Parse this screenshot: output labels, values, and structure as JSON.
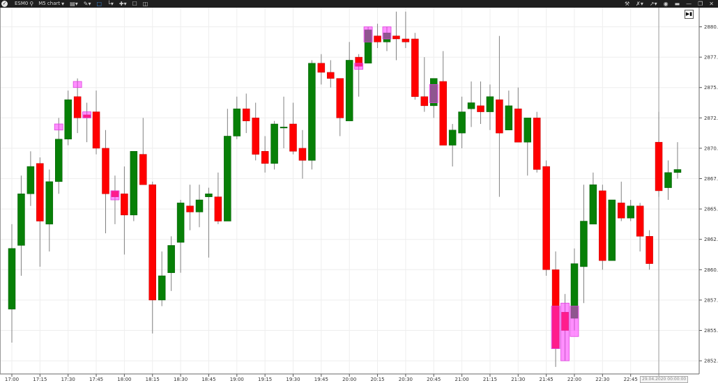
{
  "toolbar": {
    "symbol": "ESM0",
    "timeframe": "M5 chart",
    "left_icons": [
      "logo-icon",
      "search-icon",
      "monitor-icon",
      "pencil-icon",
      "chart-type-icon",
      "indicators-icon",
      "crosshair-icon",
      "square-icon",
      "panels-icon"
    ],
    "right_icons": [
      "tools-icon",
      "magnet-icon",
      "link-icon",
      "camera-icon",
      "pin-icon",
      "minimize-icon",
      "restore-icon",
      "close-icon"
    ]
  },
  "colors": {
    "up": "#078007",
    "down": "#ff0000",
    "marker": "#ff33ff",
    "grid": "#eeeeee",
    "wick": "#808080"
  },
  "date_label": "29.04.2020 00:00:00",
  "chart_data": {
    "type": "candlestick",
    "title": "",
    "ylim": [
      2851.5,
      2881.5
    ],
    "y_ticks": [
      "2852.50",
      "2855.00",
      "2857.50",
      "2860.00",
      "2862.50",
      "2865.00",
      "2867.50",
      "2870.00",
      "2872.50",
      "2875.00",
      "2877.50",
      "2880.00"
    ],
    "x_ticks": [
      "17:00",
      "17:15",
      "17:30",
      "17:45",
      "18:00",
      "18:15",
      "18:30",
      "18:45",
      "19:00",
      "19:15",
      "19:30",
      "19:45",
      "20:00",
      "20:15",
      "20:30",
      "20:45",
      "21:00",
      "21:15",
      "21:30",
      "21:45",
      "22:00",
      "22:30",
      "22:45"
    ],
    "grid": true,
    "candles": [
      [
        "17:00",
        2856.75,
        2863.75,
        2854,
        2861.75
      ],
      [
        "17:05",
        2862,
        2867.75,
        2859.5,
        2866.25
      ],
      [
        "17:10",
        2866.25,
        2869.75,
        2865.25,
        2868.5
      ],
      [
        "17:15",
        2868.75,
        2869.25,
        2860.25,
        2864
      ],
      [
        "17:20",
        2863.75,
        2868.25,
        2861.5,
        2867.25
      ],
      [
        "17:25",
        2867.25,
        2872.5,
        2866.25,
        2870.75
      ],
      [
        "17:30",
        2870.75,
        2874.75,
        2870.25,
        2874
      ],
      [
        "17:35",
        2874.25,
        2875.75,
        2871.25,
        2872.5
      ],
      [
        "17:40",
        2872.75,
        2873.75,
        2870.5,
        2872.5
      ],
      [
        "17:45",
        2873,
        2874.75,
        2869.5,
        2870
      ],
      [
        "17:50",
        2870,
        2871.5,
        2863,
        2866.25
      ],
      [
        "17:55",
        2866.5,
        2867.75,
        2863.75,
        2866
      ],
      [
        "18:00",
        2866.25,
        2868.5,
        2861.25,
        2864.5
      ],
      [
        "18:05",
        2864.5,
        2869.75,
        2864,
        2869.75
      ],
      [
        "18:10",
        2869.5,
        2872.5,
        2867,
        2867
      ],
      [
        "18:15",
        2867,
        2867.25,
        2854.75,
        2857.5
      ],
      [
        "18:20",
        2857.5,
        2861.5,
        2857,
        2859.5
      ],
      [
        "18:25",
        2859.75,
        2862.75,
        2858.25,
        2862
      ],
      [
        "18:30",
        2862.25,
        2865.75,
        2859.75,
        2865.5
      ],
      [
        "18:35",
        2865.25,
        2867,
        2863.25,
        2864.75
      ],
      [
        "18:40",
        2864.75,
        2867,
        2863.5,
        2865.75
      ],
      [
        "18:45",
        2866,
        2866.75,
        2861,
        2866.25
      ],
      [
        "18:50",
        2866,
        2868,
        2863.75,
        2864
      ],
      [
        "18:55",
        2864,
        2873.25,
        2864,
        2871
      ],
      [
        "19:00",
        2871,
        2874.25,
        2870.75,
        2873.25
      ],
      [
        "19:05",
        2873.25,
        2874.5,
        2871.25,
        2872.25
      ],
      [
        "19:10",
        2872.5,
        2873.75,
        2869,
        2869.5
      ],
      [
        "19:15",
        2869.75,
        2871,
        2868,
        2868.75
      ],
      [
        "19:20",
        2868.75,
        2872.25,
        2868.25,
        2872
      ],
      [
        "19:25",
        2871.75,
        2874.25,
        2870,
        2871.75
      ],
      [
        "19:30",
        2872,
        2873.75,
        2869.5,
        2869.75
      ],
      [
        "19:35",
        2870,
        2871.5,
        2867.5,
        2869
      ],
      [
        "19:40",
        2869,
        2877.25,
        2868.25,
        2877
      ],
      [
        "19:45",
        2877,
        2877.75,
        2875.25,
        2876.25
      ],
      [
        "19:50",
        2876.25,
        2877.25,
        2875,
        2875.75
      ],
      [
        "19:55",
        2875.75,
        2875.75,
        2871,
        2872.5
      ],
      [
        "20:00",
        2872.25,
        2878.75,
        2872.25,
        2877.25
      ],
      [
        "20:05",
        2877.5,
        2877.75,
        2874.25,
        2876.75
      ],
      [
        "20:10",
        2877,
        2880,
        2877,
        2879.75
      ],
      [
        "20:15",
        2879.25,
        2880.25,
        2878.25,
        2878.75
      ],
      [
        "20:20",
        2878.75,
        2880,
        2878,
        2879.5
      ],
      [
        "20:25",
        2879.25,
        2881.25,
        2877.25,
        2879
      ],
      [
        "20:30",
        2879,
        2881.25,
        2878.25,
        2878.75
      ],
      [
        "20:35",
        2879,
        2879.5,
        2874,
        2874.25
      ],
      [
        "20:40",
        2874.25,
        2877.5,
        2873,
        2873.5
      ],
      [
        "20:45",
        2873.5,
        2875.75,
        2872.5,
        2875.75
      ],
      [
        "20:50",
        2875.5,
        2878,
        2870.25,
        2870.25
      ],
      [
        "20:55",
        2870.25,
        2872,
        2868.5,
        2871.5
      ],
      [
        "21:00",
        2871.25,
        2874.25,
        2870,
        2873
      ],
      [
        "21:05",
        2873.25,
        2875.5,
        2871.75,
        2873.75
      ],
      [
        "21:10",
        2873.5,
        2875.5,
        2872,
        2873
      ],
      [
        "21:15",
        2873,
        2875.25,
        2871.5,
        2874.25
      ],
      [
        "21:20",
        2874,
        2879.25,
        2866,
        2871.25
      ],
      [
        "21:25",
        2871.5,
        2874.75,
        2871.5,
        2873.5
      ],
      [
        "21:30",
        2873.25,
        2875,
        2870.5,
        2870.5
      ],
      [
        "21:35",
        2870.5,
        2872.5,
        2867.75,
        2872.5
      ],
      [
        "21:40",
        2872.5,
        2873,
        2868,
        2868.25
      ],
      [
        "21:45",
        2868.5,
        2869,
        2859.5,
        2860
      ],
      [
        "21:50",
        2860,
        2861.5,
        2852,
        2853.5
      ],
      [
        "21:55",
        2856.5,
        2858,
        2852.5,
        2855
      ],
      [
        "22:00",
        2856,
        2861.75,
        2855,
        2860.5
      ],
      [
        "22:05",
        2860.25,
        2867,
        2857.25,
        2864
      ],
      [
        "22:10",
        2863.75,
        2868,
        2863.75,
        2867
      ],
      [
        "22:30",
        2866.5,
        2867,
        2860,
        2860.75
      ],
      [
        "22:35",
        2860.75,
        2865.75,
        2860.75,
        2865.75
      ],
      [
        "22:40",
        2865.5,
        2867.25,
        2864,
        2864.25
      ],
      [
        "22:45",
        2864.25,
        2865.75,
        2864,
        2865.25
      ],
      [
        "22:50",
        2865.25,
        2865.5,
        2861.5,
        2862.75
      ],
      [
        "22:55",
        2862.75,
        2863.25,
        2860,
        2860.5
      ],
      [
        "23:00",
        2870.5,
        2873,
        2866,
        2866.5
      ],
      [
        "23:05",
        2866.75,
        2869,
        2865.75,
        2868
      ],
      [
        "23:10",
        2868,
        2870.5,
        2867.5,
        2868.25
      ]
    ],
    "markers": [
      [
        "17:25",
        2871.5,
        2872
      ],
      [
        "17:35",
        2875,
        2875.5
      ],
      [
        "17:40",
        2872.5,
        2873
      ],
      [
        "17:55",
        2865.75,
        2866.5
      ],
      [
        "20:05",
        2876.5,
        2877
      ],
      [
        "20:10",
        2878.75,
        2880
      ],
      [
        "20:20",
        2879,
        2880
      ],
      [
        "20:45",
        2873.75,
        2875.25
      ],
      [
        "21:50",
        2853.5,
        2857
      ],
      [
        "21:55",
        2852.5,
        2857.25
      ],
      [
        "22:00",
        2854.5,
        2857
      ]
    ],
    "separator_time": "23:00"
  }
}
